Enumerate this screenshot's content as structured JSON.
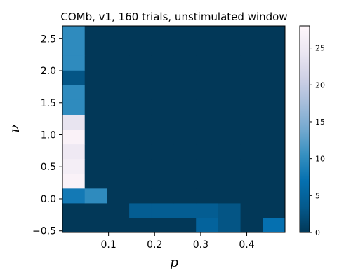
{
  "chart_data": {
    "type": "heatmap",
    "title": "COMb, v1, 160 trials, unstimulated window",
    "xlabel": "p",
    "ylabel": "ν",
    "x_range": [
      0.0,
      0.483
    ],
    "y_range": [
      -0.525,
      2.7
    ],
    "x_bin_edges": [
      0.0,
      0.0483,
      0.0966,
      0.1449,
      0.1932,
      0.2415,
      0.2898,
      0.3381,
      0.3864,
      0.4347,
      0.483
    ],
    "y_bin_edges": [
      -0.525,
      -0.2952,
      -0.0648,
      0.1655,
      0.3959,
      0.6262,
      0.8566,
      1.0869,
      1.3173,
      1.5476,
      1.778,
      2.0083,
      2.2387,
      2.469,
      2.7
    ],
    "values": [
      [
        0,
        0,
        0,
        0,
        0,
        0,
        5,
        3,
        0,
        7
      ],
      [
        0,
        0,
        0,
        4,
        4,
        4,
        4,
        3,
        0,
        0
      ],
      [
        8,
        10,
        0,
        0,
        0,
        0,
        0,
        0,
        0,
        0
      ],
      [
        27,
        0,
        0,
        0,
        0,
        0,
        0,
        0,
        0,
        0
      ],
      [
        26,
        0,
        0,
        0,
        0,
        0,
        0,
        0,
        0,
        0
      ],
      [
        25,
        0,
        0,
        0,
        0,
        0,
        0,
        0,
        0,
        0
      ],
      [
        27,
        0,
        0,
        0,
        0,
        0,
        0,
        0,
        0,
        0
      ],
      [
        24,
        0,
        0,
        0,
        0,
        0,
        0,
        0,
        0,
        0
      ],
      [
        10,
        0,
        0,
        0,
        0,
        0,
        0,
        0,
        0,
        0
      ],
      [
        10,
        0,
        0,
        0,
        0,
        0,
        0,
        0,
        0,
        0
      ],
      [
        3,
        0,
        0,
        0,
        0,
        0,
        0,
        0,
        0,
        0
      ],
      [
        10,
        0,
        0,
        0,
        0,
        0,
        0,
        0,
        0,
        0
      ],
      [
        10,
        0,
        0,
        0,
        0,
        0,
        0,
        0,
        0,
        0
      ],
      [
        10,
        0,
        0,
        0,
        0,
        0,
        0,
        0,
        0,
        0
      ]
    ],
    "x_ticks": [
      0.1,
      0.2,
      0.3,
      0.4
    ],
    "x_tick_labels": [
      "0.1",
      "0.2",
      "0.3",
      "0.4"
    ],
    "y_ticks": [
      -0.5,
      0.0,
      0.5,
      1.0,
      1.5,
      2.0,
      2.5
    ],
    "y_tick_labels": [
      "−0.5",
      "0.0",
      "0.5",
      "1.0",
      "1.5",
      "2.0",
      "2.5"
    ],
    "colorbar": {
      "min": 0,
      "max": 28,
      "ticks": [
        0,
        5,
        10,
        15,
        20,
        25
      ],
      "tick_labels": [
        "0",
        "5",
        "10",
        "15",
        "20",
        "25"
      ],
      "colormap": "PuBu_r",
      "stops": [
        "#023858",
        "#045a8d",
        "#0570b0",
        "#3690c0",
        "#74a9cf",
        "#a6bddb",
        "#d0d1e6",
        "#ece7f2",
        "#fff7fb"
      ]
    }
  }
}
